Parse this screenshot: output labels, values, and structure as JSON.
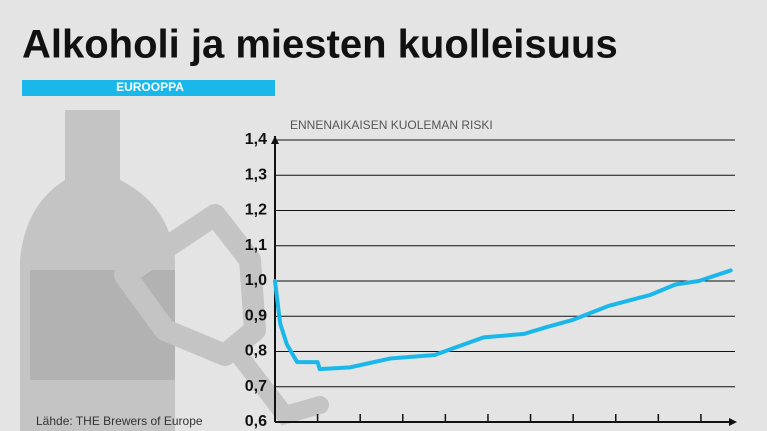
{
  "chart_data": {
    "type": "line",
    "title": "Alkoholi ja miesten kuolleisuus",
    "region": "EUROOPPA",
    "subtitle": "ENNENAIKAISEN KUOLEMAN RISKI",
    "source": "Lähde: THE Brewers of Europe",
    "x": [
      0,
      0.12,
      0.28,
      0.52,
      1.0,
      1.05,
      1.76,
      2.7,
      3.75,
      4.2,
      4.9,
      5.85,
      6.4,
      7.0,
      7.85,
      8.8,
      9.4,
      9.95,
      10.7
    ],
    "series": [
      {
        "color": "#1ab8ea",
        "values": [
          1.0,
          0.88,
          0.82,
          0.77,
          0.77,
          0.75,
          0.755,
          0.78,
          0.79,
          0.81,
          0.84,
          0.85,
          0.87,
          0.89,
          0.93,
          0.96,
          0.99,
          1.0,
          1.03
        ]
      }
    ],
    "xlim": [
      0,
      10.8
    ],
    "xticks": [
      1,
      2,
      3,
      4,
      5,
      6,
      7,
      8,
      9,
      10
    ],
    "ylim": [
      0.6,
      1.4
    ],
    "yticks": [
      {
        "value": 0.6,
        "label": "0,6"
      },
      {
        "value": 0.7,
        "label": "0,7"
      },
      {
        "value": 0.8,
        "label": "0,8"
      },
      {
        "value": 0.9,
        "label": "0,9"
      },
      {
        "value": 1.0,
        "label": "1,0"
      },
      {
        "value": 1.1,
        "label": "1,1"
      },
      {
        "value": 1.2,
        "label": "1,2"
      },
      {
        "value": 1.3,
        "label": "1,3"
      },
      {
        "value": 1.4,
        "label": "1,4"
      }
    ],
    "grid": true
  }
}
